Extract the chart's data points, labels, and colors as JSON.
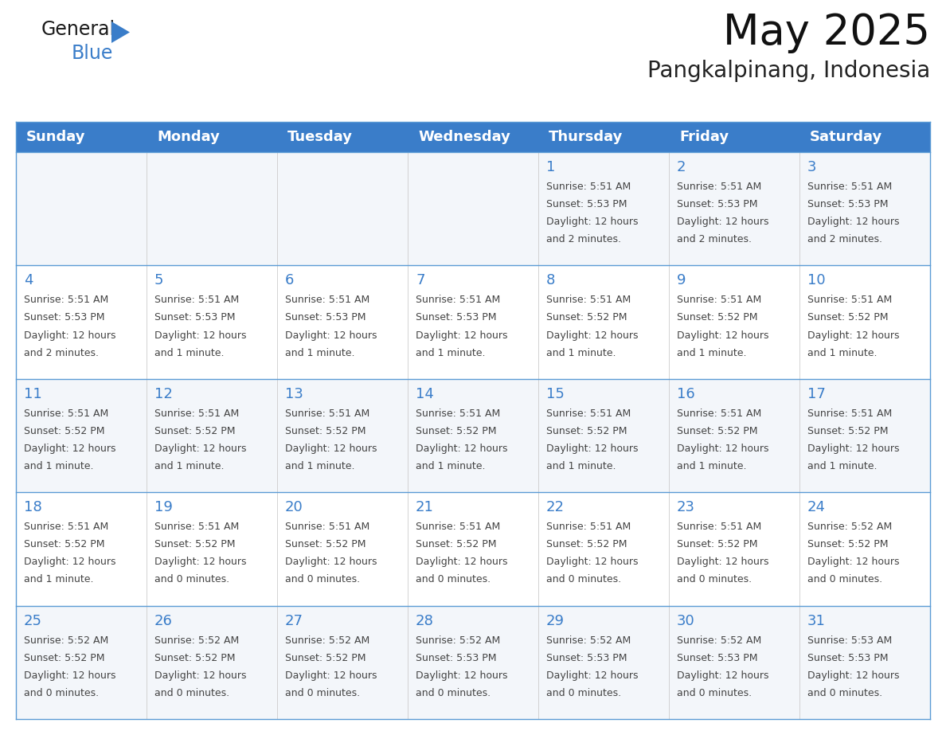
{
  "title": "May 2025",
  "subtitle": "Pangkalpinang, Indonesia",
  "header_bg": "#3A7DC9",
  "header_text_color": "#FFFFFF",
  "row_bg_odd": "#FFFFFF",
  "row_bg_even": "#F0F4F8",
  "day_number_color": "#3A7DC9",
  "text_color": "#444444",
  "border_color": "#3A7DC9",
  "grid_color": "#CCCCCC",
  "days_of_week": [
    "Sunday",
    "Monday",
    "Tuesday",
    "Wednesday",
    "Thursday",
    "Friday",
    "Saturday"
  ],
  "calendar_data": [
    [
      {
        "day": 0,
        "sunrise": "",
        "sunset": "",
        "daylight": ""
      },
      {
        "day": 0,
        "sunrise": "",
        "sunset": "",
        "daylight": ""
      },
      {
        "day": 0,
        "sunrise": "",
        "sunset": "",
        "daylight": ""
      },
      {
        "day": 0,
        "sunrise": "",
        "sunset": "",
        "daylight": ""
      },
      {
        "day": 1,
        "sunrise": "5:51 AM",
        "sunset": "5:53 PM",
        "daylight": "12 hours and 2 minutes."
      },
      {
        "day": 2,
        "sunrise": "5:51 AM",
        "sunset": "5:53 PM",
        "daylight": "12 hours and 2 minutes."
      },
      {
        "day": 3,
        "sunrise": "5:51 AM",
        "sunset": "5:53 PM",
        "daylight": "12 hours and 2 minutes."
      }
    ],
    [
      {
        "day": 4,
        "sunrise": "5:51 AM",
        "sunset": "5:53 PM",
        "daylight": "12 hours and 2 minutes."
      },
      {
        "day": 5,
        "sunrise": "5:51 AM",
        "sunset": "5:53 PM",
        "daylight": "12 hours and 1 minute."
      },
      {
        "day": 6,
        "sunrise": "5:51 AM",
        "sunset": "5:53 PM",
        "daylight": "12 hours and 1 minute."
      },
      {
        "day": 7,
        "sunrise": "5:51 AM",
        "sunset": "5:53 PM",
        "daylight": "12 hours and 1 minute."
      },
      {
        "day": 8,
        "sunrise": "5:51 AM",
        "sunset": "5:52 PM",
        "daylight": "12 hours and 1 minute."
      },
      {
        "day": 9,
        "sunrise": "5:51 AM",
        "sunset": "5:52 PM",
        "daylight": "12 hours and 1 minute."
      },
      {
        "day": 10,
        "sunrise": "5:51 AM",
        "sunset": "5:52 PM",
        "daylight": "12 hours and 1 minute."
      }
    ],
    [
      {
        "day": 11,
        "sunrise": "5:51 AM",
        "sunset": "5:52 PM",
        "daylight": "12 hours and 1 minute."
      },
      {
        "day": 12,
        "sunrise": "5:51 AM",
        "sunset": "5:52 PM",
        "daylight": "12 hours and 1 minute."
      },
      {
        "day": 13,
        "sunrise": "5:51 AM",
        "sunset": "5:52 PM",
        "daylight": "12 hours and 1 minute."
      },
      {
        "day": 14,
        "sunrise": "5:51 AM",
        "sunset": "5:52 PM",
        "daylight": "12 hours and 1 minute."
      },
      {
        "day": 15,
        "sunrise": "5:51 AM",
        "sunset": "5:52 PM",
        "daylight": "12 hours and 1 minute."
      },
      {
        "day": 16,
        "sunrise": "5:51 AM",
        "sunset": "5:52 PM",
        "daylight": "12 hours and 1 minute."
      },
      {
        "day": 17,
        "sunrise": "5:51 AM",
        "sunset": "5:52 PM",
        "daylight": "12 hours and 1 minute."
      }
    ],
    [
      {
        "day": 18,
        "sunrise": "5:51 AM",
        "sunset": "5:52 PM",
        "daylight": "12 hours and 1 minute."
      },
      {
        "day": 19,
        "sunrise": "5:51 AM",
        "sunset": "5:52 PM",
        "daylight": "12 hours and 0 minutes."
      },
      {
        "day": 20,
        "sunrise": "5:51 AM",
        "sunset": "5:52 PM",
        "daylight": "12 hours and 0 minutes."
      },
      {
        "day": 21,
        "sunrise": "5:51 AM",
        "sunset": "5:52 PM",
        "daylight": "12 hours and 0 minutes."
      },
      {
        "day": 22,
        "sunrise": "5:51 AM",
        "sunset": "5:52 PM",
        "daylight": "12 hours and 0 minutes."
      },
      {
        "day": 23,
        "sunrise": "5:51 AM",
        "sunset": "5:52 PM",
        "daylight": "12 hours and 0 minutes."
      },
      {
        "day": 24,
        "sunrise": "5:52 AM",
        "sunset": "5:52 PM",
        "daylight": "12 hours and 0 minutes."
      }
    ],
    [
      {
        "day": 25,
        "sunrise": "5:52 AM",
        "sunset": "5:52 PM",
        "daylight": "12 hours and 0 minutes."
      },
      {
        "day": 26,
        "sunrise": "5:52 AM",
        "sunset": "5:52 PM",
        "daylight": "12 hours and 0 minutes."
      },
      {
        "day": 27,
        "sunrise": "5:52 AM",
        "sunset": "5:52 PM",
        "daylight": "12 hours and 0 minutes."
      },
      {
        "day": 28,
        "sunrise": "5:52 AM",
        "sunset": "5:53 PM",
        "daylight": "12 hours and 0 minutes."
      },
      {
        "day": 29,
        "sunrise": "5:52 AM",
        "sunset": "5:53 PM",
        "daylight": "12 hours and 0 minutes."
      },
      {
        "day": 30,
        "sunrise": "5:52 AM",
        "sunset": "5:53 PM",
        "daylight": "12 hours and 0 minutes."
      },
      {
        "day": 31,
        "sunrise": "5:53 AM",
        "sunset": "5:53 PM",
        "daylight": "12 hours and 0 minutes."
      }
    ]
  ],
  "logo_text1": "General",
  "logo_text2": "Blue",
  "logo_color1": "#1a1a1a",
  "logo_color2": "#3A7DC9",
  "logo_triangle_color": "#3A7DC9",
  "title_fontsize": 38,
  "subtitle_fontsize": 20,
  "header_fontsize": 13,
  "day_num_fontsize": 13,
  "cell_text_fontsize": 9
}
